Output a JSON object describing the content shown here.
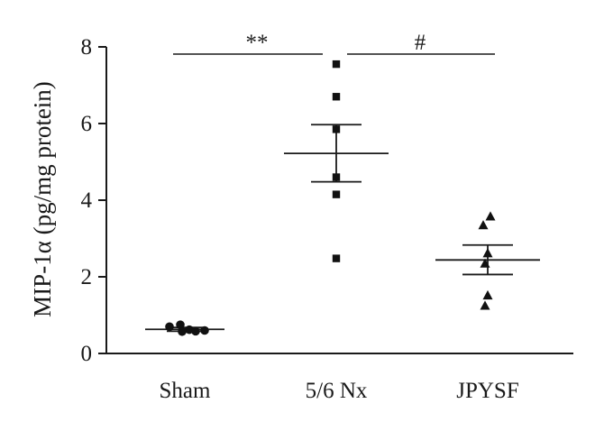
{
  "chart_data": {
    "type": "scatter",
    "ylabel": "MIP-1α (pg/mg protein)",
    "ylim": [
      0,
      8
    ],
    "yticks": [
      0,
      2,
      4,
      6,
      8
    ],
    "categories": [
      "Sham",
      "5/6 Nx",
      "JPYSF"
    ],
    "groups": [
      {
        "category": "Sham",
        "marker": "circle",
        "values": [
          0.7,
          0.75,
          0.62,
          0.57,
          0.58,
          0.6
        ],
        "mean": 0.63,
        "sem_low": 0.58,
        "sem_high": 0.68
      },
      {
        "category": "5/6 Nx",
        "marker": "square",
        "values": [
          7.55,
          6.7,
          5.85,
          4.6,
          4.15,
          2.48
        ],
        "mean": 5.22,
        "sem_low": 4.48,
        "sem_high": 5.97
      },
      {
        "category": "JPYSF",
        "marker": "triangle",
        "values": [
          3.58,
          3.35,
          2.62,
          2.35,
          1.52,
          1.25
        ],
        "mean": 2.44,
        "sem_low": 2.06,
        "sem_high": 2.83
      }
    ],
    "significance": [
      {
        "from": "Sham",
        "to": "5/6 Nx",
        "label": "**"
      },
      {
        "from": "5/6 Nx",
        "to": "JPYSF",
        "label": "#"
      }
    ]
  }
}
